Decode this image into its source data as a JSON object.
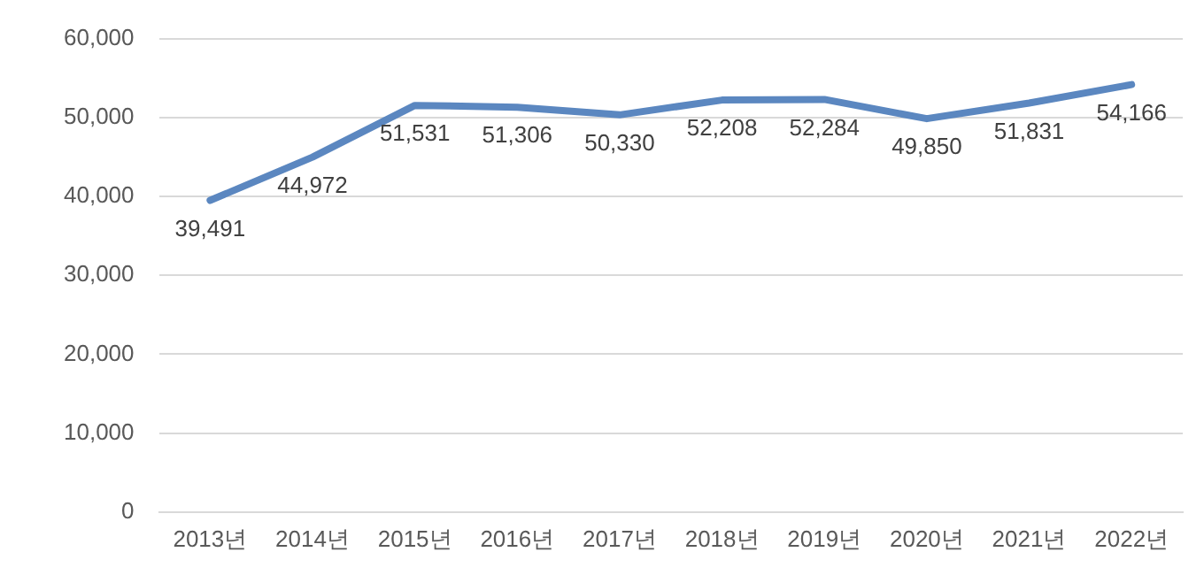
{
  "chart_data": {
    "type": "line",
    "categories": [
      "2013년",
      "2014년",
      "2015년",
      "2016년",
      "2017년",
      "2018년",
      "2019년",
      "2020년",
      "2021년",
      "2022년"
    ],
    "series": [
      {
        "color": "#5b87c0",
        "values": [
          39491,
          44972,
          51531,
          51306,
          50330,
          52208,
          52284,
          49850,
          51831,
          54166
        ],
        "value_labels": [
          "39,491",
          "44,972",
          "51,531",
          "51,306",
          "50,330",
          "52,208",
          "52,284",
          "49,850",
          "51,831",
          "54,166"
        ]
      }
    ],
    "ylim": [
      0,
      60000
    ],
    "yticks": [
      0,
      {
        "value": 10000,
        "label": "10,000"
      },
      {
        "value": 20000,
        "label": "20,000"
      },
      {
        "value": 30000,
        "label": "30,000"
      },
      {
        "value": 40000,
        "label": "40,000"
      },
      {
        "value": 50000,
        "label": "50,000"
      },
      {
        "value": 60000,
        "label": "60,000"
      }
    ],
    "grid": "y",
    "legend": false,
    "marker": "none",
    "line_style": "solid"
  }
}
